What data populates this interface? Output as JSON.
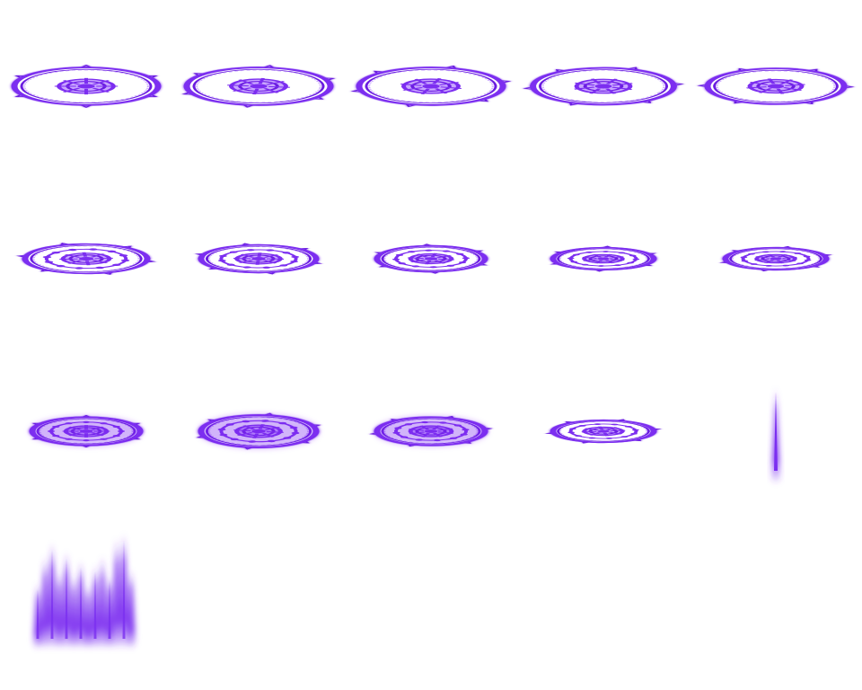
{
  "sheet": {
    "columns": 5,
    "frame_count": 16,
    "background": "#ffffff",
    "colors": {
      "primary": "#7b2ff0",
      "dark": "#6a1fe0",
      "light": "#c9a6ff",
      "core": "#ffffff"
    }
  },
  "frames": [
    {
      "kind": "circle",
      "rot": 0,
      "flat": 0.26,
      "scale": 1.0
    },
    {
      "kind": "circle",
      "rot": 8,
      "flat": 0.26,
      "scale": 1.0
    },
    {
      "kind": "circle",
      "rot": 16,
      "flat": 0.26,
      "scale": 1.0
    },
    {
      "kind": "circle",
      "rot": 24,
      "flat": 0.26,
      "scale": 0.98
    },
    {
      "kind": "circle",
      "rot": 32,
      "flat": 0.26,
      "scale": 0.95
    },
    {
      "kind": "circle",
      "rot": 40,
      "flat": 0.24,
      "scale": 0.85
    },
    {
      "kind": "circle",
      "rot": 48,
      "flat": 0.24,
      "scale": 0.8
    },
    {
      "kind": "circle",
      "rot": 56,
      "flat": 0.24,
      "scale": 0.75
    },
    {
      "kind": "circle",
      "rot": 64,
      "flat": 0.22,
      "scale": 0.7
    },
    {
      "kind": "circle",
      "rot": 72,
      "flat": 0.22,
      "scale": 0.7
    },
    {
      "kind": "burst",
      "rot": 0,
      "flat": 0.26,
      "scale": 0.75
    },
    {
      "kind": "burst",
      "rot": 10,
      "flat": 0.28,
      "scale": 0.8
    },
    {
      "kind": "burst",
      "rot": 20,
      "flat": 0.26,
      "scale": 0.75
    },
    {
      "kind": "circle",
      "rot": 80,
      "flat": 0.22,
      "scale": 0.7
    },
    {
      "kind": "spike",
      "rot": 0,
      "flat": 1,
      "scale": 1
    },
    {
      "kind": "flames",
      "rot": 0,
      "flat": 1,
      "scale": 1
    }
  ]
}
